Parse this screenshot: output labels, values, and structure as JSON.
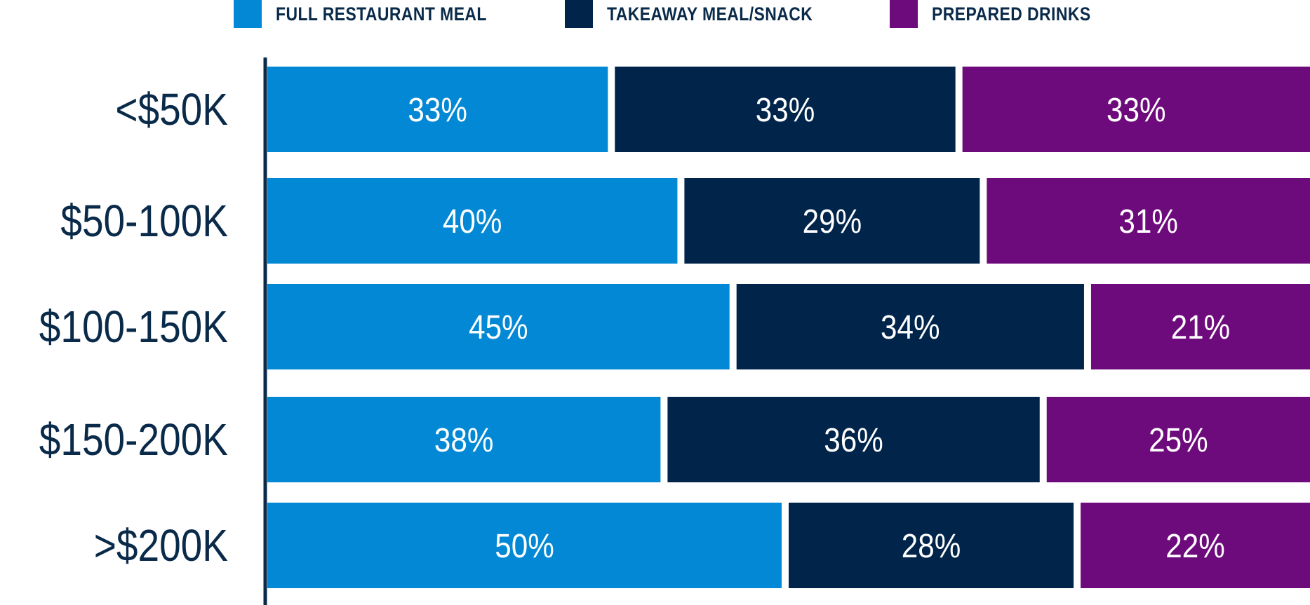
{
  "chart_data": {
    "type": "bar",
    "orientation": "horizontal",
    "stacked": true,
    "categories": [
      "<$50K",
      "$50-100K",
      "$100-150K",
      "$150-200K",
      ">$200K"
    ],
    "series": [
      {
        "name": "FULL RESTAURANT MEAL",
        "color": "#0288d4",
        "values": [
          33,
          40,
          45,
          38,
          50
        ],
        "labels": [
          "33%",
          "40%",
          "45%",
          "38%",
          "50%"
        ]
      },
      {
        "name": "TAKEAWAY MEAL/SNACK",
        "color": "#00244a",
        "values": [
          33,
          29,
          34,
          36,
          28
        ],
        "labels": [
          "33%",
          "29%",
          "34%",
          "36%",
          "28%"
        ]
      },
      {
        "name": "PREPARED DRINKS",
        "color": "#6e0b7c",
        "values": [
          33,
          31,
          21,
          25,
          22
        ],
        "labels": [
          "33%",
          "31%",
          "21%",
          "25%",
          "22%"
        ]
      }
    ],
    "xlim": [
      0,
      100
    ],
    "legend_position": "top",
    "category_label_color": "#0a2a4a",
    "axis_color": "#0a2a4a",
    "data_label_color": "#ffffff"
  }
}
